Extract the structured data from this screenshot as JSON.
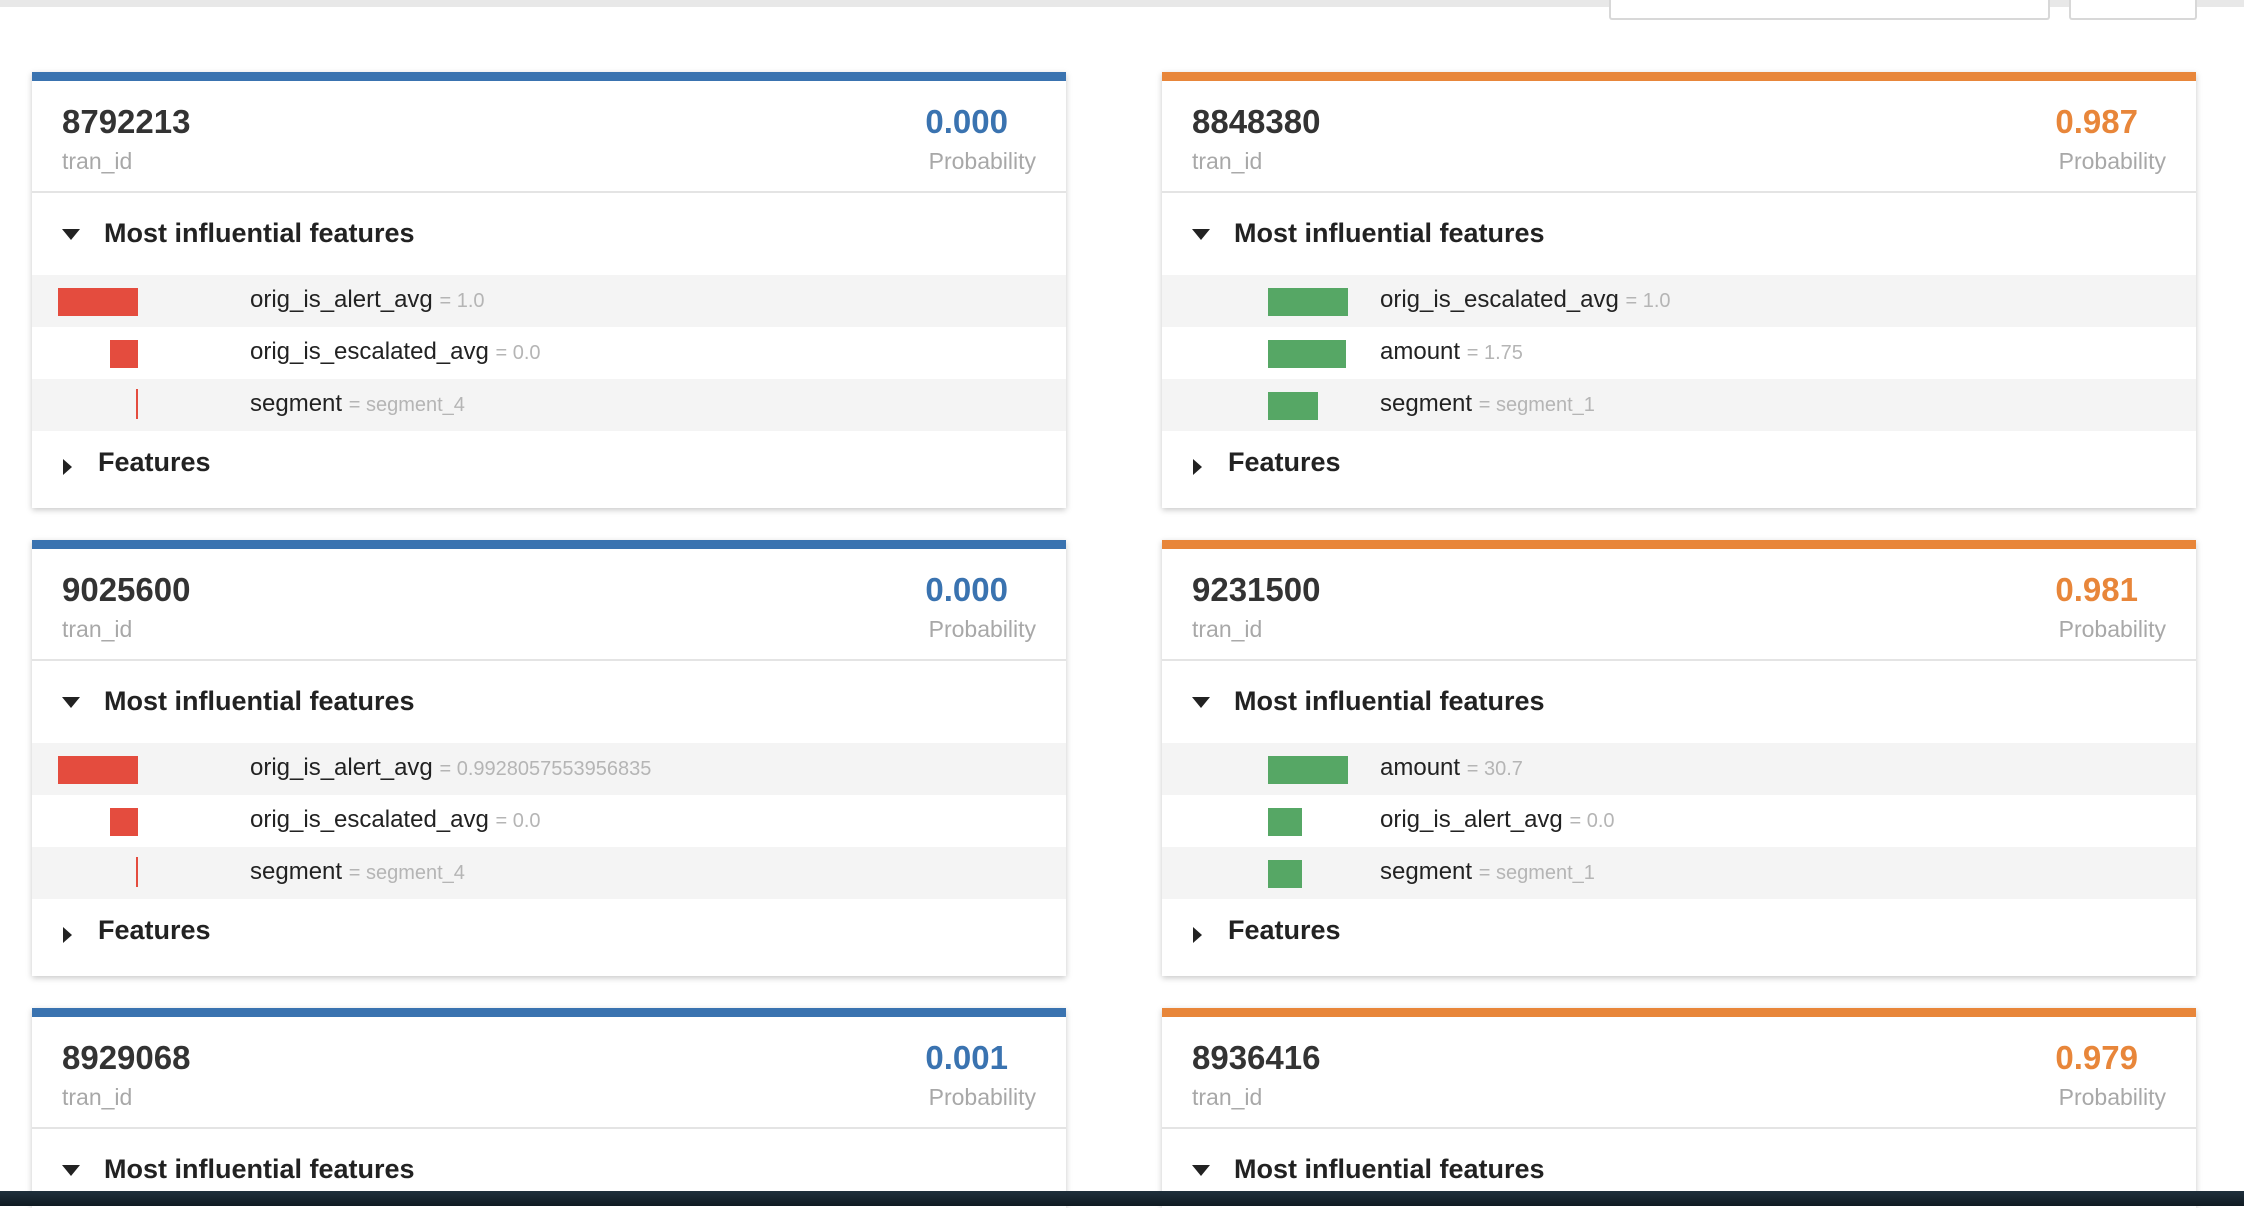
{
  "colors": {
    "blue": "#3a73b0",
    "orange": "#e8863a",
    "red_bar": "#e44c3e",
    "green_bar": "#56a765"
  },
  "labels": {
    "tran_id": "tran_id",
    "probability": "Probability",
    "most_influential": "Most influential features",
    "features": "Features"
  },
  "cards": [
    {
      "tran_id": "8792213",
      "probability": "0.000",
      "theme": "blue",
      "features": [
        {
          "name": "orig_is_alert_avg",
          "value": "= 1.0",
          "bar": "red"
        },
        {
          "name": "orig_is_escalated_avg",
          "value": "= 0.0",
          "bar": "red"
        },
        {
          "name": "segment",
          "value": "= segment_4",
          "bar": "red-line"
        }
      ]
    },
    {
      "tran_id": "8848380",
      "probability": "0.987",
      "theme": "orange",
      "features": [
        {
          "name": "orig_is_escalated_avg",
          "value": "= 1.0",
          "bar": "green"
        },
        {
          "name": "amount",
          "value": "= 1.75",
          "bar": "green"
        },
        {
          "name": "segment",
          "value": "= segment_1",
          "bar": "green"
        }
      ]
    },
    {
      "tran_id": "9025600",
      "probability": "0.000",
      "theme": "blue",
      "features": [
        {
          "name": "orig_is_alert_avg",
          "value": "= 0.9928057553956835",
          "bar": "red"
        },
        {
          "name": "orig_is_escalated_avg",
          "value": "= 0.0",
          "bar": "red"
        },
        {
          "name": "segment",
          "value": "= segment_4",
          "bar": "red-line"
        }
      ]
    },
    {
      "tran_id": "9231500",
      "probability": "0.981",
      "theme": "orange",
      "features": [
        {
          "name": "amount",
          "value": "= 30.7",
          "bar": "green"
        },
        {
          "name": "orig_is_alert_avg",
          "value": "= 0.0",
          "bar": "green"
        },
        {
          "name": "segment",
          "value": "= segment_1",
          "bar": "green"
        }
      ]
    },
    {
      "tran_id": "8929068",
      "probability": "0.001",
      "theme": "blue",
      "features": []
    },
    {
      "tran_id": "8936416",
      "probability": "0.979",
      "theme": "orange",
      "features": []
    }
  ]
}
